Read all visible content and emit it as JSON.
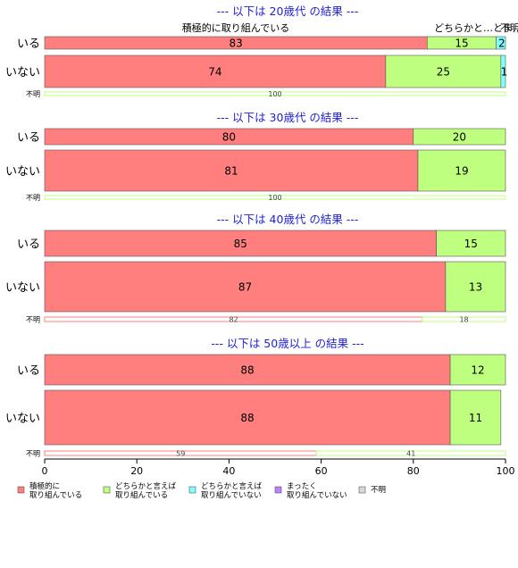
{
  "chart_data": {
    "type": "bar",
    "orientation": "horizontal",
    "stacked": true,
    "xlim": [
      0,
      100
    ],
    "xticks": [
      0,
      20,
      40,
      60,
      80,
      100
    ],
    "categories": [
      "積極的に\n取り組んでいる",
      "どちらかと言えば\n取り組んでいる",
      "どちらかと言えば\n取り組んでいない",
      "まったく\n取り組んでいない",
      "不明"
    ],
    "colors": [
      "#ff7f7f",
      "#bfff7f",
      "#7fffff",
      "#bf7fff",
      "#d9d9d9"
    ],
    "header_labels": [
      "積極的に取り組んでいる",
      "どちらかと…",
      "とま…",
      "不明"
    ],
    "groups": [
      {
        "title": "--- 以下は 20歳代 の結果 ---",
        "rows": [
          {
            "label": "いる",
            "values": [
              83,
              15,
              2,
              0,
              0
            ]
          },
          {
            "label": "いない",
            "values": [
              74,
              25,
              1,
              0,
              0
            ]
          },
          {
            "label": "不明",
            "values": [
              0,
              100,
              0,
              0,
              0
            ]
          }
        ]
      },
      {
        "title": "--- 以下は 30歳代 の結果 ---",
        "rows": [
          {
            "label": "いる",
            "values": [
              80,
              20,
              0,
              0,
              0
            ]
          },
          {
            "label": "いない",
            "values": [
              81,
              19,
              0,
              0,
              0
            ]
          },
          {
            "label": "不明",
            "values": [
              0,
              100,
              0,
              0,
              0
            ]
          }
        ]
      },
      {
        "title": "--- 以下は 40歳代 の結果 ---",
        "rows": [
          {
            "label": "いる",
            "values": [
              85,
              15,
              0,
              0,
              0
            ]
          },
          {
            "label": "いない",
            "values": [
              87,
              13,
              0,
              0,
              0
            ]
          },
          {
            "label": "不明",
            "values": [
              82,
              18,
              0,
              0,
              0
            ]
          }
        ]
      },
      {
        "title": "--- 以下は 50歳以上 の結果 ---",
        "rows": [
          {
            "label": "いる",
            "values": [
              88,
              12,
              0,
              0,
              0
            ]
          },
          {
            "label": "いない",
            "values": [
              88,
              11,
              0,
              0,
              0
            ]
          },
          {
            "label": "不明",
            "values": [
              59,
              41,
              0,
              0,
              0
            ]
          }
        ]
      }
    ],
    "legend_position": "bottom"
  }
}
